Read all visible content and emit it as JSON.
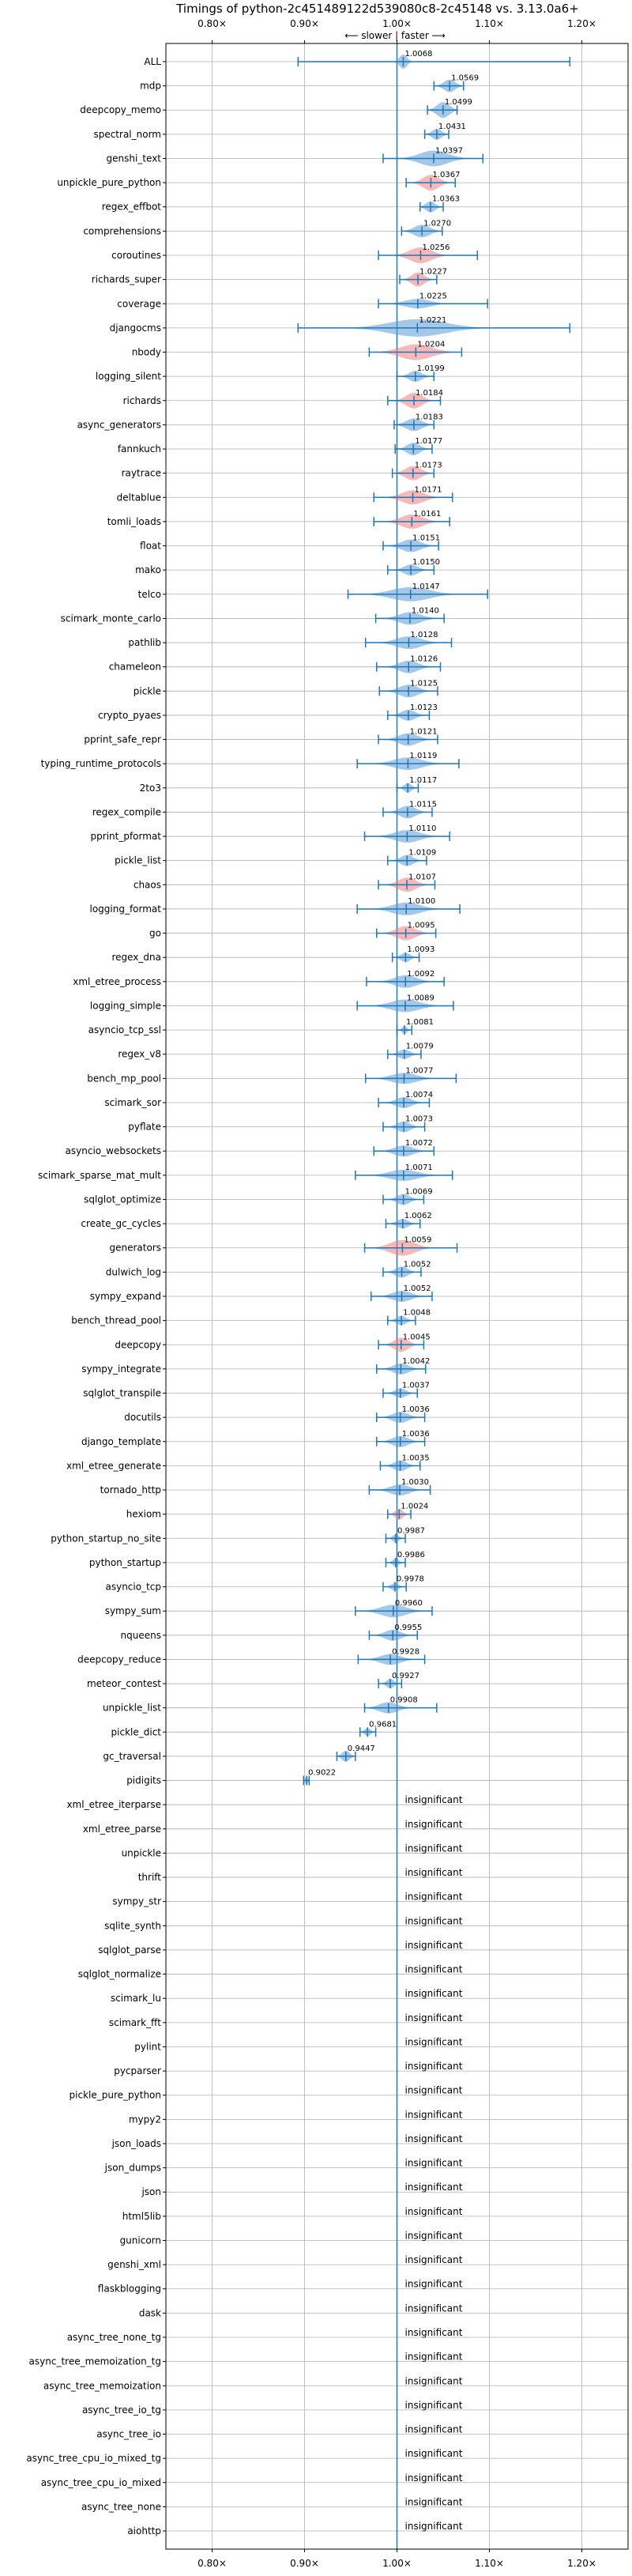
{
  "chart_data": {
    "type": "violin",
    "title": "Timings of python-2c451489122d539080c8-2c45148 vs. 3.13.0a6+",
    "direction_label": "⟵ slower | faster ⟶",
    "x_ticks": [
      "0.80×",
      "0.90×",
      "1.00×",
      "1.10×",
      "1.20×"
    ],
    "x_tick_values": [
      0.8,
      0.9,
      1.0,
      1.1,
      1.2
    ],
    "xlim": [
      0.75,
      1.25
    ],
    "reference": 1.0,
    "grid": true,
    "colors": {
      "faster": "#5b9bd5",
      "slower": "#ef7f7f",
      "errorbar": "#1f77b4",
      "reference_line": "#1f77b4"
    },
    "insignificant_label": "insignificant",
    "rows": [
      {
        "name": "ALL",
        "mean": 1.0068,
        "err_lo": 0.893,
        "err_hi": 1.187,
        "spread": 0.012,
        "halfwidth": 9,
        "slower": false
      },
      {
        "name": "mdp",
        "mean": 1.0569,
        "err_lo": 1.04,
        "err_hi": 1.072,
        "spread": 0.018,
        "halfwidth": 8,
        "slower": false
      },
      {
        "name": "deepcopy_memo",
        "mean": 1.0499,
        "err_lo": 1.033,
        "err_hi": 1.065,
        "spread": 0.02,
        "halfwidth": 10,
        "slower": false
      },
      {
        "name": "spectral_norm",
        "mean": 1.0431,
        "err_lo": 1.03,
        "err_hi": 1.056,
        "spread": 0.015,
        "halfwidth": 7,
        "slower": false
      },
      {
        "name": "genshi_text",
        "mean": 1.0397,
        "err_lo": 0.985,
        "err_hi": 1.093,
        "spread": 0.045,
        "halfwidth": 10,
        "slower": false
      },
      {
        "name": "unpickle_pure_python",
        "mean": 1.0367,
        "err_lo": 1.01,
        "err_hi": 1.063,
        "spread": 0.025,
        "halfwidth": 10,
        "slower": true
      },
      {
        "name": "regex_effbot",
        "mean": 1.0363,
        "err_lo": 1.025,
        "err_hi": 1.05,
        "spread": 0.015,
        "halfwidth": 7,
        "slower": false
      },
      {
        "name": "comprehensions",
        "mean": 1.027,
        "err_lo": 1.005,
        "err_hi": 1.049,
        "spread": 0.025,
        "halfwidth": 8,
        "slower": false
      },
      {
        "name": "coroutines",
        "mean": 1.0256,
        "err_lo": 0.98,
        "err_hi": 1.087,
        "spread": 0.035,
        "halfwidth": 10,
        "slower": true
      },
      {
        "name": "richards_super",
        "mean": 1.0227,
        "err_lo": 1.003,
        "err_hi": 1.043,
        "spread": 0.02,
        "halfwidth": 9,
        "slower": true
      },
      {
        "name": "coverage",
        "mean": 1.0225,
        "err_lo": 0.98,
        "err_hi": 1.098,
        "spread": 0.04,
        "halfwidth": 6,
        "slower": false
      },
      {
        "name": "djangocms",
        "mean": 1.0221,
        "err_lo": 0.893,
        "err_hi": 1.187,
        "spread": 0.09,
        "halfwidth": 11,
        "slower": false
      },
      {
        "name": "nbody",
        "mean": 1.0204,
        "err_lo": 0.97,
        "err_hi": 1.07,
        "spread": 0.05,
        "halfwidth": 10,
        "slower": true
      },
      {
        "name": "logging_silent",
        "mean": 1.0199,
        "err_lo": 1.0,
        "err_hi": 1.04,
        "spread": 0.02,
        "halfwidth": 7,
        "slower": false
      },
      {
        "name": "richards",
        "mean": 1.0184,
        "err_lo": 0.99,
        "err_hi": 1.047,
        "spread": 0.025,
        "halfwidth": 10,
        "slower": true
      },
      {
        "name": "async_generators",
        "mean": 1.0183,
        "err_lo": 0.997,
        "err_hi": 1.04,
        "spread": 0.025,
        "halfwidth": 8,
        "slower": false
      },
      {
        "name": "fannkuch",
        "mean": 1.0177,
        "err_lo": 0.998,
        "err_hi": 1.038,
        "spread": 0.02,
        "halfwidth": 8,
        "slower": false
      },
      {
        "name": "raytrace",
        "mean": 1.0173,
        "err_lo": 0.995,
        "err_hi": 1.04,
        "spread": 0.025,
        "halfwidth": 9,
        "slower": true
      },
      {
        "name": "deltablue",
        "mean": 1.0171,
        "err_lo": 0.975,
        "err_hi": 1.06,
        "spread": 0.035,
        "halfwidth": 9,
        "slower": true
      },
      {
        "name": "tomli_loads",
        "mean": 1.0161,
        "err_lo": 0.975,
        "err_hi": 1.057,
        "spread": 0.035,
        "halfwidth": 9,
        "slower": true
      },
      {
        "name": "float",
        "mean": 1.0151,
        "err_lo": 0.985,
        "err_hi": 1.045,
        "spread": 0.03,
        "halfwidth": 8,
        "slower": false
      },
      {
        "name": "mako",
        "mean": 1.015,
        "err_lo": 0.99,
        "err_hi": 1.04,
        "spread": 0.022,
        "halfwidth": 7,
        "slower": false
      },
      {
        "name": "telco",
        "mean": 1.0147,
        "err_lo": 0.947,
        "err_hi": 1.098,
        "spread": 0.06,
        "halfwidth": 9,
        "slower": false
      },
      {
        "name": "scimark_monte_carlo",
        "mean": 1.014,
        "err_lo": 0.977,
        "err_hi": 1.051,
        "spread": 0.035,
        "halfwidth": 8,
        "slower": false
      },
      {
        "name": "pathlib",
        "mean": 1.0128,
        "err_lo": 0.966,
        "err_hi": 1.059,
        "spread": 0.04,
        "halfwidth": 8,
        "slower": false
      },
      {
        "name": "chameleon",
        "mean": 1.0126,
        "err_lo": 0.978,
        "err_hi": 1.047,
        "spread": 0.03,
        "halfwidth": 8,
        "slower": false
      },
      {
        "name": "pickle",
        "mean": 1.0125,
        "err_lo": 0.981,
        "err_hi": 1.044,
        "spread": 0.03,
        "halfwidth": 8,
        "slower": false
      },
      {
        "name": "crypto_pyaes",
        "mean": 1.0123,
        "err_lo": 0.99,
        "err_hi": 1.035,
        "spread": 0.022,
        "halfwidth": 7,
        "slower": false
      },
      {
        "name": "pprint_safe_repr",
        "mean": 1.0121,
        "err_lo": 0.98,
        "err_hi": 1.044,
        "spread": 0.03,
        "halfwidth": 8,
        "slower": false
      },
      {
        "name": "typing_runtime_protocols",
        "mean": 1.0119,
        "err_lo": 0.957,
        "err_hi": 1.067,
        "spread": 0.045,
        "halfwidth": 8,
        "slower": false
      },
      {
        "name": "2to3",
        "mean": 1.0117,
        "err_lo": 1.0,
        "err_hi": 1.023,
        "spread": 0.012,
        "halfwidth": 6,
        "slower": false
      },
      {
        "name": "regex_compile",
        "mean": 1.0115,
        "err_lo": 0.985,
        "err_hi": 1.038,
        "spread": 0.025,
        "halfwidth": 8,
        "slower": false
      },
      {
        "name": "pprint_pformat",
        "mean": 1.011,
        "err_lo": 0.965,
        "err_hi": 1.057,
        "spread": 0.04,
        "halfwidth": 8,
        "slower": false
      },
      {
        "name": "pickle_list",
        "mean": 1.0109,
        "err_lo": 0.99,
        "err_hi": 1.032,
        "spread": 0.02,
        "halfwidth": 7,
        "slower": false
      },
      {
        "name": "chaos",
        "mean": 1.0107,
        "err_lo": 0.98,
        "err_hi": 1.041,
        "spread": 0.028,
        "halfwidth": 9,
        "slower": true
      },
      {
        "name": "logging_format",
        "mean": 1.01,
        "err_lo": 0.957,
        "err_hi": 1.068,
        "spread": 0.045,
        "halfwidth": 8,
        "slower": false
      },
      {
        "name": "go",
        "mean": 1.0095,
        "err_lo": 0.978,
        "err_hi": 1.042,
        "spread": 0.03,
        "halfwidth": 9,
        "slower": true
      },
      {
        "name": "regex_dna",
        "mean": 1.0093,
        "err_lo": 0.995,
        "err_hi": 1.024,
        "spread": 0.015,
        "halfwidth": 6,
        "slower": false
      },
      {
        "name": "xml_etree_process",
        "mean": 1.0092,
        "err_lo": 0.967,
        "err_hi": 1.051,
        "spread": 0.035,
        "halfwidth": 8,
        "slower": false
      },
      {
        "name": "logging_simple",
        "mean": 1.0089,
        "err_lo": 0.957,
        "err_hi": 1.061,
        "spread": 0.045,
        "halfwidth": 8,
        "slower": false
      },
      {
        "name": "asyncio_tcp_ssl",
        "mean": 1.0081,
        "err_lo": 1.0,
        "err_hi": 1.016,
        "spread": 0.008,
        "halfwidth": 5,
        "slower": false
      },
      {
        "name": "regex_v8",
        "mean": 1.0079,
        "err_lo": 0.99,
        "err_hi": 1.026,
        "spread": 0.018,
        "halfwidth": 6,
        "slower": false
      },
      {
        "name": "bench_mp_pool",
        "mean": 1.0077,
        "err_lo": 0.966,
        "err_hi": 1.064,
        "spread": 0.04,
        "halfwidth": 7,
        "slower": false
      },
      {
        "name": "scimark_sor",
        "mean": 1.0074,
        "err_lo": 0.98,
        "err_hi": 1.035,
        "spread": 0.025,
        "halfwidth": 7,
        "slower": false
      },
      {
        "name": "pyflate",
        "mean": 1.0073,
        "err_lo": 0.985,
        "err_hi": 1.03,
        "spread": 0.02,
        "halfwidth": 7,
        "slower": false
      },
      {
        "name": "asyncio_websockets",
        "mean": 1.0072,
        "err_lo": 0.975,
        "err_hi": 1.04,
        "spread": 0.03,
        "halfwidth": 7,
        "slower": false
      },
      {
        "name": "scimark_sparse_mat_mult",
        "mean": 1.0071,
        "err_lo": 0.955,
        "err_hi": 1.06,
        "spread": 0.045,
        "halfwidth": 7,
        "slower": false
      },
      {
        "name": "sqlglot_optimize",
        "mean": 1.0069,
        "err_lo": 0.985,
        "err_hi": 1.029,
        "spread": 0.02,
        "halfwidth": 7,
        "slower": false
      },
      {
        "name": "create_gc_cycles",
        "mean": 1.0062,
        "err_lo": 0.988,
        "err_hi": 1.025,
        "spread": 0.018,
        "halfwidth": 6,
        "slower": false
      },
      {
        "name": "generators",
        "mean": 1.0059,
        "err_lo": 0.965,
        "err_hi": 1.065,
        "spread": 0.04,
        "halfwidth": 10,
        "slower": true
      },
      {
        "name": "dulwich_log",
        "mean": 1.0052,
        "err_lo": 0.985,
        "err_hi": 1.026,
        "spread": 0.02,
        "halfwidth": 7,
        "slower": false
      },
      {
        "name": "sympy_expand",
        "mean": 1.0052,
        "err_lo": 0.972,
        "err_hi": 1.038,
        "spread": 0.03,
        "halfwidth": 7,
        "slower": false
      },
      {
        "name": "bench_thread_pool",
        "mean": 1.0048,
        "err_lo": 0.99,
        "err_hi": 1.02,
        "spread": 0.015,
        "halfwidth": 6,
        "slower": false
      },
      {
        "name": "deepcopy",
        "mean": 1.0045,
        "err_lo": 0.98,
        "err_hi": 1.029,
        "spread": 0.022,
        "halfwidth": 9,
        "slower": true
      },
      {
        "name": "sympy_integrate",
        "mean": 1.0042,
        "err_lo": 0.978,
        "err_hi": 1.031,
        "spread": 0.025,
        "halfwidth": 7,
        "slower": false
      },
      {
        "name": "sqlglot_transpile",
        "mean": 1.0037,
        "err_lo": 0.985,
        "err_hi": 1.022,
        "spread": 0.018,
        "halfwidth": 6,
        "slower": false
      },
      {
        "name": "docutils",
        "mean": 1.0036,
        "err_lo": 0.978,
        "err_hi": 1.03,
        "spread": 0.025,
        "halfwidth": 7,
        "slower": false
      },
      {
        "name": "django_template",
        "mean": 1.0036,
        "err_lo": 0.978,
        "err_hi": 1.03,
        "spread": 0.025,
        "halfwidth": 7,
        "slower": false
      },
      {
        "name": "xml_etree_generate",
        "mean": 1.0035,
        "err_lo": 0.982,
        "err_hi": 1.025,
        "spread": 0.02,
        "halfwidth": 7,
        "slower": false
      },
      {
        "name": "tornado_http",
        "mean": 1.003,
        "err_lo": 0.97,
        "err_hi": 1.036,
        "spread": 0.03,
        "halfwidth": 7,
        "slower": false
      },
      {
        "name": "hexiom",
        "mean": 1.0024,
        "err_lo": 0.99,
        "err_hi": 1.015,
        "spread": 0.012,
        "halfwidth": 7,
        "slower": true
      },
      {
        "name": "python_startup_no_site",
        "mean": 0.9987,
        "err_lo": 0.988,
        "err_hi": 1.009,
        "spread": 0.01,
        "halfwidth": 5,
        "slower": false
      },
      {
        "name": "python_startup",
        "mean": 0.9986,
        "err_lo": 0.988,
        "err_hi": 1.009,
        "spread": 0.01,
        "halfwidth": 5,
        "slower": false
      },
      {
        "name": "asyncio_tcp",
        "mean": 0.9978,
        "err_lo": 0.985,
        "err_hi": 1.01,
        "spread": 0.012,
        "halfwidth": 5,
        "slower": false
      },
      {
        "name": "sympy_sum",
        "mean": 0.996,
        "err_lo": 0.955,
        "err_hi": 1.038,
        "spread": 0.04,
        "halfwidth": 8,
        "slower": false
      },
      {
        "name": "nqueens",
        "mean": 0.9955,
        "err_lo": 0.97,
        "err_hi": 1.022,
        "spread": 0.025,
        "halfwidth": 7,
        "slower": false
      },
      {
        "name": "deepcopy_reduce",
        "mean": 0.9928,
        "err_lo": 0.958,
        "err_hi": 1.03,
        "spread": 0.032,
        "halfwidth": 7,
        "slower": false
      },
      {
        "name": "meteor_contest",
        "mean": 0.9927,
        "err_lo": 0.98,
        "err_hi": 1.005,
        "spread": 0.012,
        "halfwidth": 6,
        "slower": false
      },
      {
        "name": "unpickle_list",
        "mean": 0.9908,
        "err_lo": 0.965,
        "err_hi": 1.043,
        "spread": 0.03,
        "halfwidth": 7,
        "slower": false
      },
      {
        "name": "pickle_dict",
        "mean": 0.9681,
        "err_lo": 0.96,
        "err_hi": 0.977,
        "spread": 0.01,
        "halfwidth": 5,
        "slower": false
      },
      {
        "name": "gc_traversal",
        "mean": 0.9447,
        "err_lo": 0.935,
        "err_hi": 0.955,
        "spread": 0.012,
        "halfwidth": 7,
        "slower": false
      },
      {
        "name": "pidigits",
        "mean": 0.9022,
        "err_lo": 0.899,
        "err_hi": 0.905,
        "spread": 0.004,
        "halfwidth": 5,
        "slower": false
      },
      {
        "name": "xml_etree_iterparse",
        "insignificant": true
      },
      {
        "name": "xml_etree_parse",
        "insignificant": true
      },
      {
        "name": "unpickle",
        "insignificant": true
      },
      {
        "name": "thrift",
        "insignificant": true
      },
      {
        "name": "sympy_str",
        "insignificant": true
      },
      {
        "name": "sqlite_synth",
        "insignificant": true
      },
      {
        "name": "sqlglot_parse",
        "insignificant": true
      },
      {
        "name": "sqlglot_normalize",
        "insignificant": true
      },
      {
        "name": "scimark_lu",
        "insignificant": true
      },
      {
        "name": "scimark_fft",
        "insignificant": true
      },
      {
        "name": "pylint",
        "insignificant": true
      },
      {
        "name": "pycparser",
        "insignificant": true
      },
      {
        "name": "pickle_pure_python",
        "insignificant": true
      },
      {
        "name": "mypy2",
        "insignificant": true
      },
      {
        "name": "json_loads",
        "insignificant": true
      },
      {
        "name": "json_dumps",
        "insignificant": true
      },
      {
        "name": "json",
        "insignificant": true
      },
      {
        "name": "html5lib",
        "insignificant": true
      },
      {
        "name": "gunicorn",
        "insignificant": true
      },
      {
        "name": "genshi_xml",
        "insignificant": true
      },
      {
        "name": "flaskblogging",
        "insignificant": true
      },
      {
        "name": "dask",
        "insignificant": true
      },
      {
        "name": "async_tree_none_tg",
        "insignificant": true
      },
      {
        "name": "async_tree_memoization_tg",
        "insignificant": true
      },
      {
        "name": "async_tree_memoization",
        "insignificant": true
      },
      {
        "name": "async_tree_io_tg",
        "insignificant": true
      },
      {
        "name": "async_tree_io",
        "insignificant": true
      },
      {
        "name": "async_tree_cpu_io_mixed_tg",
        "insignificant": true
      },
      {
        "name": "async_tree_cpu_io_mixed",
        "insignificant": true
      },
      {
        "name": "async_tree_none",
        "insignificant": true
      },
      {
        "name": "aiohttp",
        "insignificant": true
      }
    ]
  }
}
